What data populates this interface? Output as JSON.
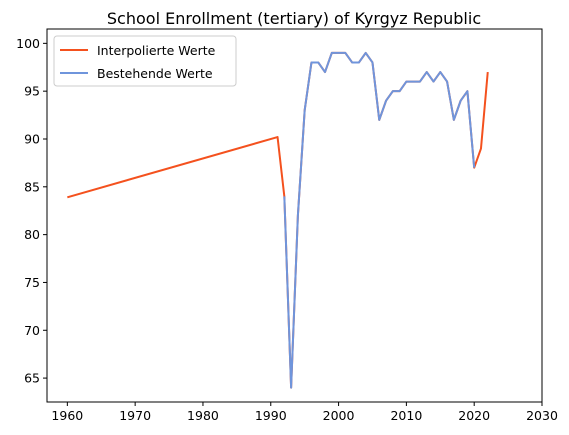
{
  "chart_data": {
    "type": "line",
    "title": "School Enrollment (tertiary) of Kyrgyz Republic",
    "xlabel": "",
    "ylabel": "",
    "xlim": [
      1957,
      2030
    ],
    "ylim": [
      62.5,
      101.5
    ],
    "xticks": [
      1960,
      1970,
      1980,
      1990,
      2000,
      2010,
      2020,
      2030
    ],
    "yticks": [
      65,
      70,
      75,
      80,
      85,
      90,
      95,
      100
    ],
    "grid": false,
    "legend_position": "top-left",
    "series": [
      {
        "name": "Interpolierte Werte",
        "color": "#f4511e",
        "x": [
          1960,
          1991,
          1992,
          1993,
          1994,
          1995,
          1996,
          1997,
          1998,
          1999,
          2000,
          2001,
          2002,
          2003,
          2004,
          2005,
          2006,
          2007,
          2008,
          2009,
          2010,
          2011,
          2012,
          2013,
          2014,
          2015,
          2016,
          2017,
          2018,
          2019,
          2020,
          2021,
          2022
        ],
        "y": [
          83.9,
          90.2,
          84,
          64,
          82,
          93,
          98,
          98,
          97,
          99,
          99,
          99,
          98,
          98,
          99,
          98,
          92,
          94,
          95,
          95,
          96,
          96,
          96,
          97,
          96,
          97,
          96,
          92,
          94,
          95,
          87,
          89,
          97
        ]
      },
      {
        "name": "Bestehende Werte",
        "color": "#6f95dc",
        "x": [
          1992,
          1993,
          1994,
          1995,
          1996,
          1997,
          1998,
          1999,
          2000,
          2001,
          2002,
          2003,
          2004,
          2005,
          2006,
          2007,
          2008,
          2009,
          2010,
          2011,
          2012,
          2013,
          2014,
          2015,
          2016,
          2017,
          2018,
          2019,
          2020
        ],
        "y": [
          84,
          64,
          82,
          93,
          98,
          98,
          97,
          99,
          99,
          99,
          98,
          98,
          99,
          98,
          92,
          94,
          95,
          95,
          96,
          96,
          96,
          97,
          96,
          97,
          96,
          92,
          94,
          95,
          87
        ]
      }
    ]
  }
}
